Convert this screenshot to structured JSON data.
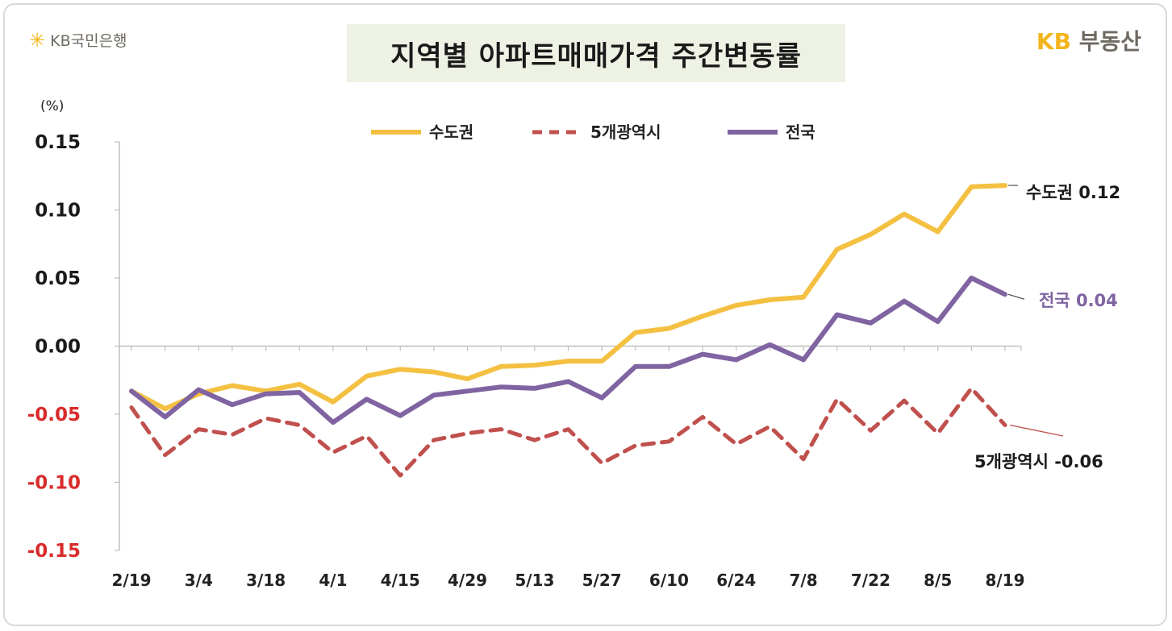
{
  "brand_left": {
    "icon": "kb-star-icon",
    "text": "KB국민은행"
  },
  "brand_right": {
    "prefix": "KB",
    "text": "부동산"
  },
  "title": "지역별 아파트매매가격 주간변동률",
  "colors": {
    "capital": "#f4c042",
    "metro5": "#c0504d",
    "national": "#8064a2",
    "negative_tick": "#d92b2b",
    "positive_tick": "#1a1a1a"
  },
  "chart_data": {
    "type": "line",
    "unit_label": "(%)",
    "ylim": [
      -0.15,
      0.15
    ],
    "y_ticks": [
      "0.15",
      "0.10",
      "0.05",
      "0.00",
      "-0.05",
      "-0.10",
      "-0.15"
    ],
    "y_tick_values": [
      0.15,
      0.1,
      0.05,
      0.0,
      -0.05,
      -0.1,
      -0.15
    ],
    "x_tick_labels": [
      "2/19",
      "3/4",
      "3/18",
      "4/1",
      "4/15",
      "4/29",
      "5/13",
      "5/27",
      "6/10",
      "6/24",
      "7/8",
      "7/22",
      "8/5",
      "8/19"
    ],
    "x_tick_index": [
      0,
      2,
      4,
      6,
      8,
      10,
      12,
      14,
      16,
      18,
      20,
      22,
      24,
      26
    ],
    "x_count": 27,
    "legend_position": "top-center",
    "series": [
      {
        "name": "수도권",
        "style": "solid",
        "values": [
          -0.033,
          -0.046,
          -0.035,
          -0.029,
          -0.033,
          -0.028,
          -0.041,
          -0.022,
          -0.017,
          -0.019,
          -0.024,
          -0.015,
          -0.014,
          -0.011,
          -0.011,
          0.01,
          0.013,
          0.022,
          0.03,
          0.034,
          0.036,
          0.071,
          0.082,
          0.097,
          0.084,
          0.117,
          0.118
        ]
      },
      {
        "name": "5개광역시",
        "style": "dashed",
        "values": [
          -0.045,
          -0.08,
          -0.061,
          -0.065,
          -0.053,
          -0.058,
          -0.078,
          -0.066,
          -0.095,
          -0.069,
          -0.064,
          -0.061,
          -0.069,
          -0.061,
          -0.086,
          -0.073,
          -0.07,
          -0.052,
          -0.072,
          -0.059,
          -0.083,
          -0.039,
          -0.062,
          -0.04,
          -0.064,
          -0.031,
          -0.058
        ]
      },
      {
        "name": "전국",
        "style": "solid",
        "values": [
          -0.033,
          -0.052,
          -0.032,
          -0.043,
          -0.035,
          -0.034,
          -0.056,
          -0.039,
          -0.051,
          -0.036,
          -0.033,
          -0.03,
          -0.031,
          -0.026,
          -0.038,
          -0.015,
          -0.015,
          -0.006,
          -0.01,
          0.001,
          -0.01,
          0.023,
          0.017,
          0.033,
          0.018,
          0.05,
          0.038
        ]
      }
    ],
    "end_labels": [
      {
        "series": "수도권",
        "text": "수도권 0.12"
      },
      {
        "series": "전국",
        "text": "전국 0.04"
      },
      {
        "series": "5개광역시",
        "text": "5개광역시 -0.06"
      }
    ]
  }
}
